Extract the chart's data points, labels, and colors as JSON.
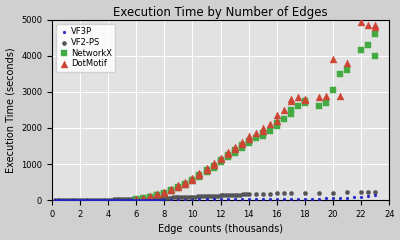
{
  "title": "Execution Time by Number of Edges",
  "xlabel": "Edge  counts (thousands)",
  "ylabel": "Execution Time (seconds)",
  "xlim": [
    0,
    24
  ],
  "ylim": [
    0,
    5000
  ],
  "xticks": [
    0,
    2,
    4,
    6,
    8,
    10,
    12,
    14,
    16,
    18,
    20,
    22,
    24
  ],
  "yticks": [
    0,
    1000,
    2000,
    3000,
    4000,
    5000
  ],
  "background_color": "#d0d0d0",
  "plot_bg_color": "#e2e2e2",
  "grid_color": "white",
  "series": [
    {
      "label": "VF2-PS",
      "color": "#555555",
      "marker": "o",
      "markersize": 3,
      "x": [
        0.2,
        0.4,
        0.6,
        0.8,
        1.0,
        1.2,
        1.4,
        1.6,
        1.8,
        2.0,
        2.2,
        2.4,
        2.6,
        2.8,
        3.0,
        3.2,
        3.4,
        3.6,
        3.8,
        4.0,
        4.2,
        4.4,
        4.6,
        4.8,
        5.0,
        5.2,
        5.4,
        5.6,
        5.8,
        6.0,
        6.2,
        6.4,
        6.6,
        6.8,
        7.0,
        7.2,
        7.4,
        7.6,
        7.8,
        8.0,
        8.2,
        8.4,
        8.6,
        8.8,
        9.0,
        9.2,
        9.4,
        9.6,
        9.8,
        10.0,
        10.2,
        10.4,
        10.6,
        10.8,
        11.0,
        11.2,
        11.4,
        11.6,
        11.8,
        12.0,
        12.2,
        12.4,
        12.6,
        12.8,
        13.0,
        13.2,
        13.4,
        13.6,
        13.8,
        14.0,
        14.5,
        15.0,
        15.5,
        16.0,
        16.5,
        17.0,
        18.0,
        19.0,
        20.0,
        21.0,
        22.0,
        22.5,
        23.0
      ],
      "y": [
        2,
        3,
        4,
        4,
        5,
        5,
        6,
        7,
        7,
        8,
        9,
        10,
        10,
        11,
        12,
        13,
        14,
        15,
        16,
        17,
        18,
        20,
        21,
        22,
        24,
        26,
        28,
        30,
        32,
        35,
        38,
        40,
        43,
        46,
        50,
        52,
        55,
        58,
        60,
        65,
        68,
        72,
        75,
        78,
        80,
        83,
        86,
        89,
        92,
        95,
        98,
        102,
        105,
        108,
        112,
        115,
        118,
        122,
        126,
        130,
        133,
        136,
        140,
        143,
        147,
        150,
        155,
        158,
        162,
        165,
        170,
        175,
        180,
        185,
        190,
        195,
        200,
        205,
        210,
        215,
        220,
        225,
        230
      ]
    },
    {
      "label": "NetworkX",
      "color": "#44aa44",
      "marker": "s",
      "markersize": 4,
      "x": [
        6.0,
        6.5,
        7.0,
        7.0,
        7.5,
        7.5,
        8.0,
        8.0,
        8.5,
        8.5,
        9.0,
        9.0,
        9.5,
        9.5,
        10.0,
        10.0,
        10.5,
        10.5,
        11.0,
        11.0,
        11.5,
        11.5,
        12.0,
        12.0,
        12.5,
        12.5,
        13.0,
        13.0,
        13.5,
        13.5,
        14.0,
        14.0,
        14.5,
        15.0,
        15.0,
        15.5,
        16.0,
        16.0,
        16.5,
        17.0,
        17.0,
        17.5,
        18.0,
        18.0,
        19.0,
        19.5,
        20.0,
        20.5,
        21.0,
        22.0,
        22.5,
        23.0,
        23.0
      ],
      "y": [
        30,
        50,
        80,
        100,
        130,
        150,
        180,
        200,
        250,
        280,
        330,
        360,
        420,
        460,
        520,
        560,
        650,
        700,
        780,
        830,
        900,
        960,
        1050,
        1100,
        1200,
        1250,
        1320,
        1380,
        1450,
        1520,
        1580,
        1650,
        1720,
        1780,
        1850,
        1920,
        2050,
        2150,
        2250,
        2400,
        2500,
        2600,
        2700,
        2750,
        2600,
        2700,
        3050,
        3500,
        3600,
        4150,
        4300,
        4600,
        4000
      ]
    },
    {
      "label": "DotMotif",
      "color": "#cc4433",
      "marker": "^",
      "markersize": 5,
      "x": [
        6.0,
        6.5,
        7.0,
        7.0,
        7.5,
        7.5,
        8.0,
        8.0,
        8.5,
        8.5,
        9.0,
        9.0,
        9.5,
        9.5,
        10.0,
        10.0,
        10.5,
        10.5,
        11.0,
        11.0,
        11.5,
        11.5,
        12.0,
        12.0,
        12.5,
        12.5,
        13.0,
        13.0,
        13.5,
        13.5,
        14.0,
        14.0,
        14.5,
        15.0,
        15.0,
        15.5,
        16.0,
        16.0,
        16.5,
        17.0,
        17.0,
        17.5,
        18.0,
        18.0,
        19.0,
        19.5,
        20.0,
        20.5,
        21.0,
        22.0,
        22.5,
        23.0,
        23.0
      ],
      "y": [
        40,
        65,
        100,
        120,
        160,
        180,
        210,
        240,
        290,
        320,
        370,
        410,
        460,
        500,
        560,
        610,
        700,
        760,
        840,
        900,
        970,
        1040,
        1130,
        1180,
        1280,
        1340,
        1420,
        1480,
        1560,
        1620,
        1700,
        1780,
        1850,
        1920,
        2000,
        2100,
        2200,
        2350,
        2500,
        2750,
        2800,
        2850,
        2800,
        2780,
        2850,
        2900,
        3900,
        2900,
        3800,
        4950,
        4850,
        4850,
        4800
      ]
    },
    {
      "label": "VF3P",
      "color": "#2222cc",
      "marker": ".",
      "markersize": 4,
      "x": [
        0.2,
        0.4,
        0.6,
        0.8,
        1.0,
        1.2,
        1.4,
        1.6,
        1.8,
        2.0,
        2.2,
        2.4,
        2.6,
        2.8,
        3.0,
        3.2,
        3.4,
        3.6,
        3.8,
        4.0,
        4.2,
        4.4,
        4.6,
        4.8,
        5.0,
        5.2,
        5.4,
        5.6,
        5.8,
        6.0,
        6.2,
        6.4,
        6.6,
        6.8,
        7.0,
        7.2,
        7.4,
        7.6,
        7.8,
        8.0,
        8.5,
        9.0,
        9.5,
        10.0,
        10.5,
        11.0,
        11.5,
        12.0,
        12.5,
        13.0,
        13.5,
        14.0,
        14.5,
        15.0,
        15.5,
        16.0,
        16.5,
        17.0,
        17.5,
        18.0,
        18.5,
        19.0,
        19.5,
        20.0,
        20.5,
        21.0,
        21.5,
        22.0,
        22.5,
        23.0
      ],
      "y": [
        1,
        1,
        2,
        2,
        2,
        3,
        3,
        3,
        3,
        4,
        4,
        4,
        5,
        5,
        5,
        5,
        6,
        6,
        6,
        7,
        7,
        7,
        8,
        8,
        8,
        9,
        9,
        9,
        10,
        10,
        10,
        11,
        11,
        11,
        12,
        12,
        13,
        13,
        13,
        14,
        15,
        16,
        17,
        18,
        19,
        20,
        21,
        22,
        23,
        24,
        25,
        26,
        27,
        28,
        29,
        30,
        32,
        34,
        36,
        38,
        40,
        42,
        50,
        60,
        65,
        70,
        80,
        100,
        120,
        150
      ]
    }
  ]
}
